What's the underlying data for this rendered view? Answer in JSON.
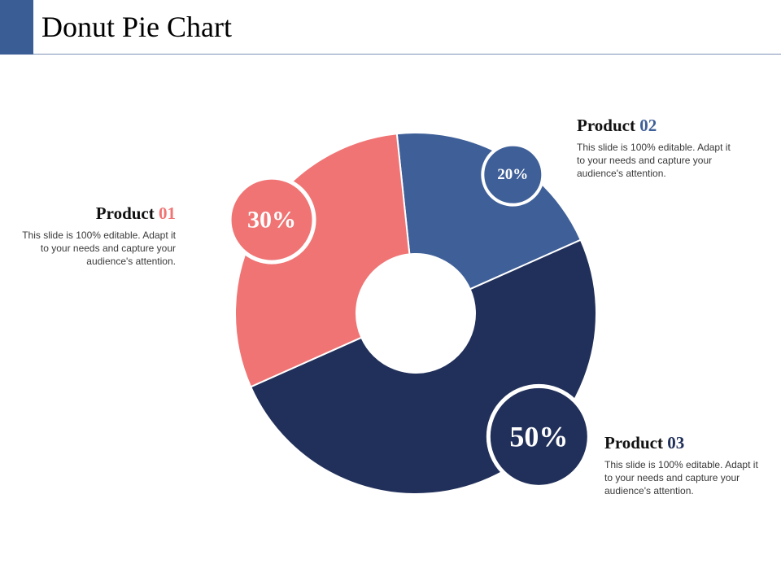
{
  "slide": {
    "title": "Donut Pie Chart"
  },
  "colors": {
    "accent_bar": "#3b5d95",
    "title_rule": "#7f93b8",
    "product01": "#f07474",
    "product02": "#3e5f98",
    "product03": "#21305a",
    "badge_border": "#ffffff"
  },
  "chart_data": {
    "type": "pie",
    "title": "Donut Pie Chart",
    "categories": [
      "Product 01",
      "Product 02",
      "Product 03"
    ],
    "values": [
      30,
      20,
      50
    ],
    "unit": "%",
    "data_labels": [
      "30%",
      "20%",
      "50%"
    ]
  },
  "products": [
    {
      "name": "Product",
      "number": "01",
      "description": "This slide is 100% editable. Adapt it to your needs and capture your audience's attention."
    },
    {
      "name": "Product",
      "number": "02",
      "description": "This slide is 100% editable. Adapt it to your needs and capture your audience's attention."
    },
    {
      "name": "Product",
      "number": "03",
      "description": "This slide is 100% editable. Adapt it to your needs and capture your audience's attention."
    }
  ]
}
